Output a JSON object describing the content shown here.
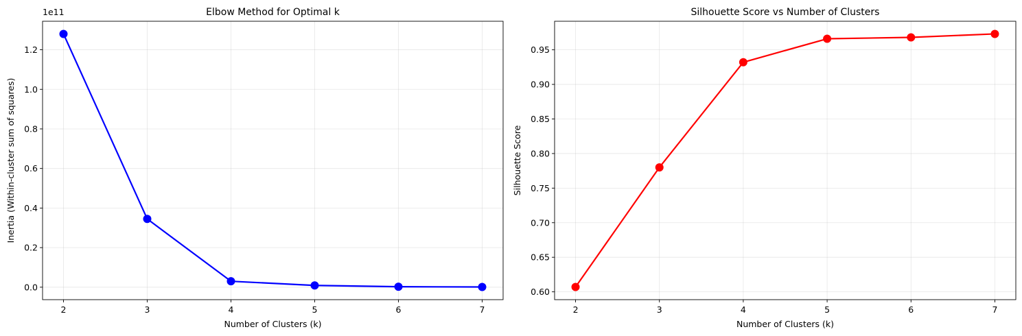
{
  "chart_data": [
    {
      "type": "line",
      "title": "Elbow Method for Optimal k",
      "xlabel": "Number of Clusters (k)",
      "ylabel": "Inertia (Within-cluster sum of squares)",
      "offset_text": "1e11",
      "x": [
        2,
        3,
        4,
        5,
        6,
        7
      ],
      "x_tick_labels": [
        "2",
        "3",
        "4",
        "5",
        "6",
        "7"
      ],
      "y_ticks": [
        0.0,
        0.2,
        0.4,
        0.6,
        0.8,
        1.0,
        1.2
      ],
      "y_tick_labels": [
        "0.0",
        "0.2",
        "0.4",
        "0.6",
        "0.8",
        "1.0",
        "1.2"
      ],
      "y_scale": 100000000000.0,
      "series": [
        {
          "values": [
            128000000000,
            34500000000,
            3000000000,
            900000000,
            250000000,
            100000000
          ],
          "color": "#0000ff",
          "marker": "circle"
        }
      ],
      "xlim": [
        1.75,
        7.25
      ],
      "ylim": [
        -6300000000,
        134400000000
      ],
      "grid": true
    },
    {
      "type": "line",
      "title": "Silhouette Score vs Number of Clusters",
      "xlabel": "Number of Clusters (k)",
      "ylabel": "Silhouette Score",
      "offset_text": "",
      "x": [
        2,
        3,
        4,
        5,
        6,
        7
      ],
      "x_tick_labels": [
        "2",
        "3",
        "4",
        "5",
        "6",
        "7"
      ],
      "y_ticks": [
        0.6,
        0.65,
        0.7,
        0.75,
        0.8,
        0.85,
        0.9,
        0.95
      ],
      "y_tick_labels": [
        "0.60",
        "0.65",
        "0.70",
        "0.75",
        "0.80",
        "0.85",
        "0.90",
        "0.95"
      ],
      "y_scale": 1,
      "series": [
        {
          "values": [
            0.607,
            0.78,
            0.932,
            0.966,
            0.968,
            0.973
          ],
          "color": "#ff0000",
          "marker": "circle"
        }
      ],
      "xlim": [
        1.75,
        7.25
      ],
      "ylim": [
        0.5887,
        0.9913
      ],
      "grid": true
    }
  ]
}
